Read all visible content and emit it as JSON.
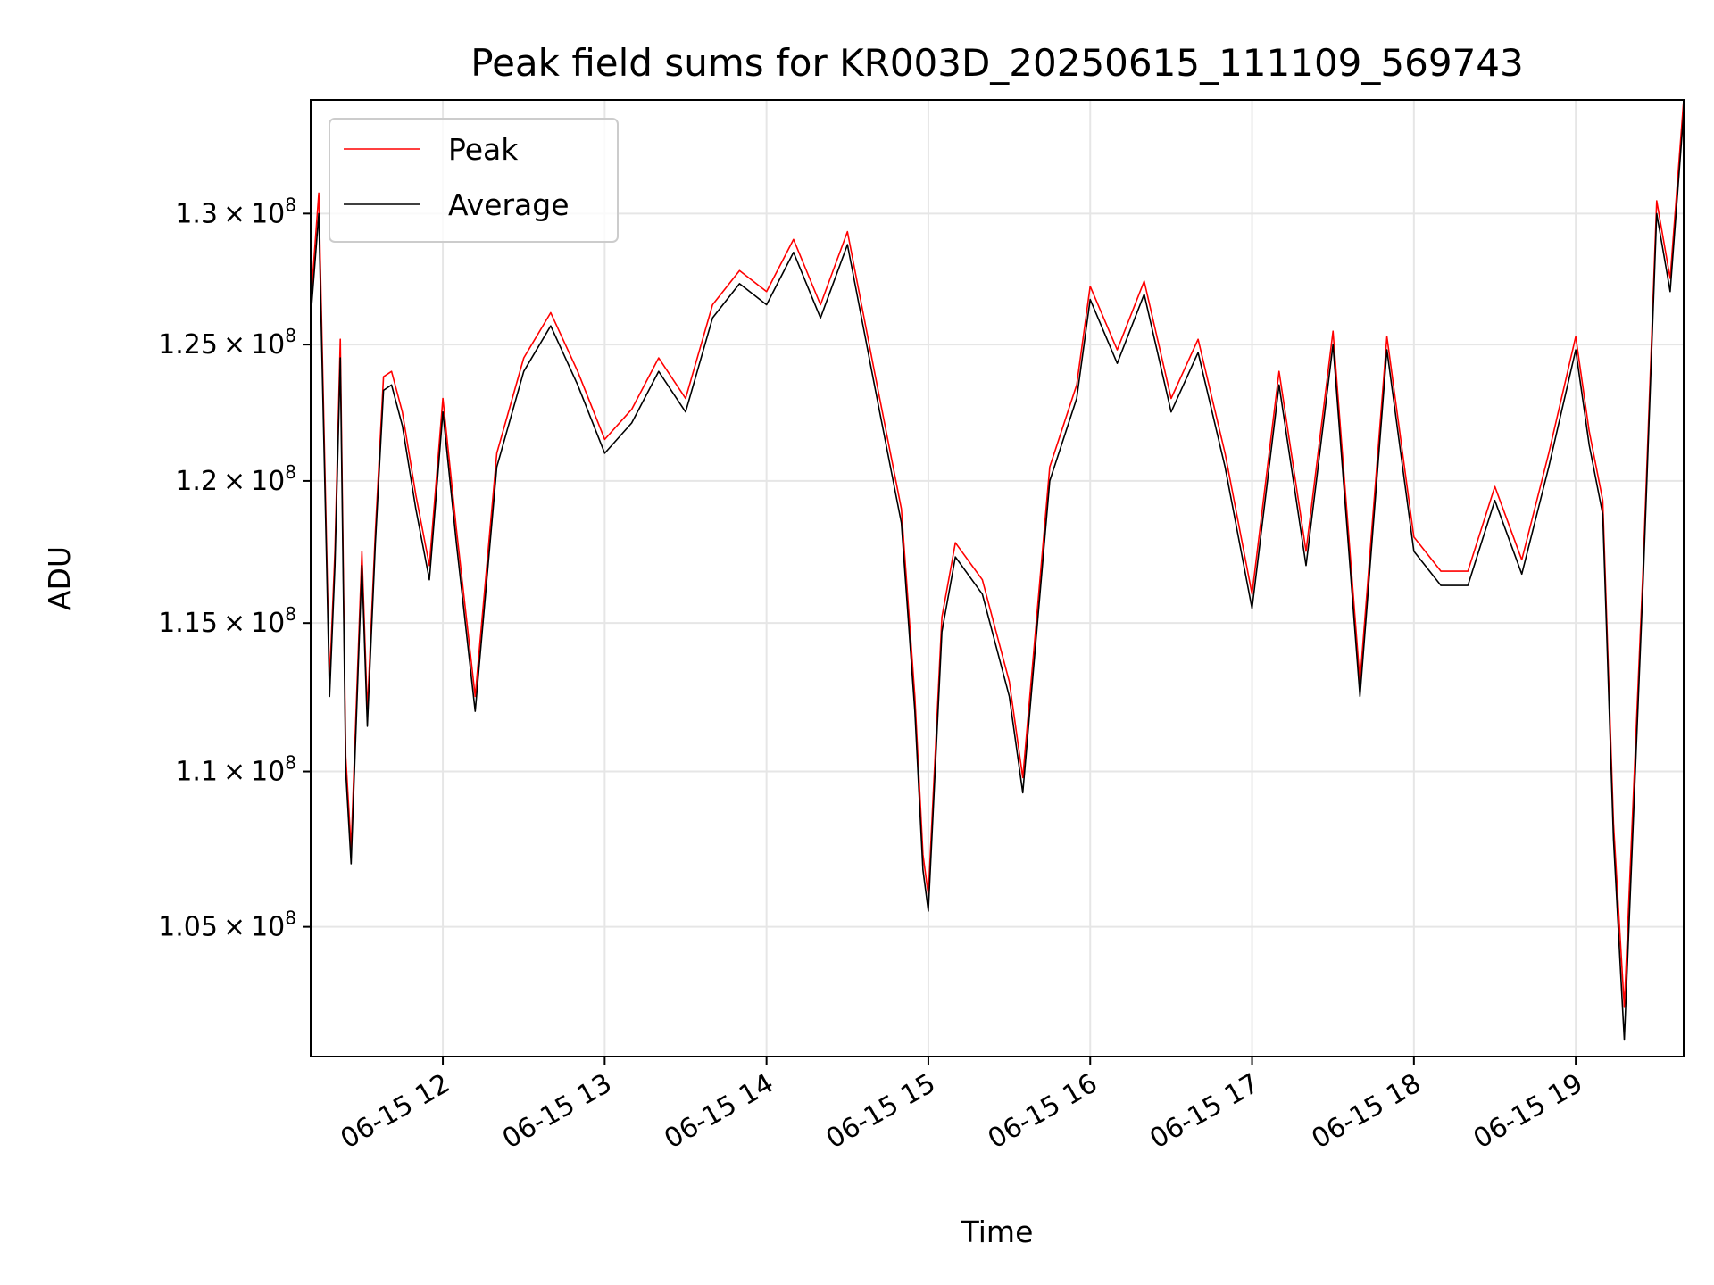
{
  "chart_data": {
    "type": "line",
    "title": "Peak field sums for KR003D_20250615_111109_569743",
    "xlabel": "Time",
    "ylabel": "ADU",
    "x_ticks": [
      "06-15 12",
      "06-15 13",
      "06-15 14",
      "06-15 15",
      "06-15 16",
      "06-15 17",
      "06-15 18",
      "06-15 19"
    ],
    "y_ticks": [
      {
        "value": 105000000,
        "mant": "1.05"
      },
      {
        "value": 110000000,
        "mant": "1.1"
      },
      {
        "value": 115000000,
        "mant": "1.15"
      },
      {
        "value": 120000000,
        "mant": "1.2"
      },
      {
        "value": 125000000,
        "mant": "1.25"
      },
      {
        "value": 130000000,
        "mant": "1.3"
      }
    ],
    "y_exponent": "8",
    "y_scale": "log",
    "xlim": [
      "06-15 11:11",
      "06-15 19:40"
    ],
    "ylim": [
      101000000,
      134500000
    ],
    "grid": true,
    "legend_position": "top-left",
    "series": [
      {
        "name": "Peak",
        "color": "#ff0000",
        "x": [
          "06-15 11:11",
          "06-15 11:14",
          "06-15 11:18",
          "06-15 11:20",
          "06-15 11:22",
          "06-15 11:24",
          "06-15 11:26",
          "06-15 11:30",
          "06-15 11:32",
          "06-15 11:35",
          "06-15 11:38",
          "06-15 11:41",
          "06-15 11:45",
          "06-15 11:50",
          "06-15 11:55",
          "06-15 12:00",
          "06-15 12:05",
          "06-15 12:12",
          "06-15 12:20",
          "06-15 12:30",
          "06-15 12:40",
          "06-15 12:50",
          "06-15 13:00",
          "06-15 13:10",
          "06-15 13:20",
          "06-15 13:30",
          "06-15 13:40",
          "06-15 13:50",
          "06-15 14:00",
          "06-15 14:10",
          "06-15 14:20",
          "06-15 14:30",
          "06-15 14:40",
          "06-15 14:50",
          "06-15 14:55",
          "06-15 14:58",
          "06-15 15:00",
          "06-15 15:05",
          "06-15 15:10",
          "06-15 15:20",
          "06-15 15:30",
          "06-15 15:35",
          "06-15 15:45",
          "06-15 15:55",
          "06-15 16:00",
          "06-15 16:10",
          "06-15 16:20",
          "06-15 16:30",
          "06-15 16:40",
          "06-15 16:50",
          "06-15 17:00",
          "06-15 17:10",
          "06-15 17:20",
          "06-15 17:30",
          "06-15 17:40",
          "06-15 17:50",
          "06-15 18:00",
          "06-15 18:10",
          "06-15 18:20",
          "06-15 18:30",
          "06-15 18:40",
          "06-15 18:50",
          "06-15 19:00",
          "06-15 19:05",
          "06-15 19:10",
          "06-15 19:14",
          "06-15 19:18",
          "06-15 19:25",
          "06-15 19:30",
          "06-15 19:35",
          "06-15 19:40"
        ],
        "values": [
          126500000,
          130800000,
          113000000,
          117500000,
          125200000,
          110500000,
          107500000,
          117500000,
          112000000,
          118200000,
          123800000,
          124000000,
          122500000,
          119500000,
          117000000,
          123000000,
          118300000,
          112500000,
          121000000,
          124500000,
          126200000,
          124000000,
          121500000,
          122600000,
          124500000,
          123000000,
          126500000,
          127800000,
          127000000,
          129000000,
          126500000,
          129300000,
          124000000,
          119000000,
          112500000,
          107300000,
          106000000,
          115200000,
          117800000,
          116500000,
          113000000,
          109800000,
          120500000,
          123500000,
          127200000,
          124800000,
          127400000,
          123000000,
          125200000,
          121000000,
          116000000,
          124000000,
          117500000,
          125500000,
          113000000,
          125300000,
          118000000,
          116800000,
          116800000,
          119800000,
          117200000,
          121000000,
          125300000,
          121800000,
          119300000,
          108300000,
          102500000,
          117000000,
          130500000,
          127500000,
          134500000
        ]
      },
      {
        "name": "Average",
        "color": "#000000",
        "x": [
          "06-15 11:11",
          "06-15 11:14",
          "06-15 11:18",
          "06-15 11:20",
          "06-15 11:22",
          "06-15 11:24",
          "06-15 11:26",
          "06-15 11:30",
          "06-15 11:32",
          "06-15 11:35",
          "06-15 11:38",
          "06-15 11:41",
          "06-15 11:45",
          "06-15 11:50",
          "06-15 11:55",
          "06-15 12:00",
          "06-15 12:05",
          "06-15 12:12",
          "06-15 12:20",
          "06-15 12:30",
          "06-15 12:40",
          "06-15 12:50",
          "06-15 13:00",
          "06-15 13:10",
          "06-15 13:20",
          "06-15 13:30",
          "06-15 13:40",
          "06-15 13:50",
          "06-15 14:00",
          "06-15 14:10",
          "06-15 14:20",
          "06-15 14:30",
          "06-15 14:40",
          "06-15 14:50",
          "06-15 14:55",
          "06-15 14:58",
          "06-15 15:00",
          "06-15 15:05",
          "06-15 15:10",
          "06-15 15:20",
          "06-15 15:30",
          "06-15 15:35",
          "06-15 15:45",
          "06-15 15:55",
          "06-15 16:00",
          "06-15 16:10",
          "06-15 16:20",
          "06-15 16:30",
          "06-15 16:40",
          "06-15 16:50",
          "06-15 17:00",
          "06-15 17:10",
          "06-15 17:20",
          "06-15 17:30",
          "06-15 17:40",
          "06-15 17:50",
          "06-15 18:00",
          "06-15 18:10",
          "06-15 18:20",
          "06-15 18:30",
          "06-15 18:40",
          "06-15 18:50",
          "06-15 19:00",
          "06-15 19:05",
          "06-15 19:10",
          "06-15 19:14",
          "06-15 19:18",
          "06-15 19:25",
          "06-15 19:30",
          "06-15 19:35",
          "06-15 19:40"
        ],
        "values": [
          126000000,
          130000000,
          112500000,
          117000000,
          124500000,
          110000000,
          107000000,
          117000000,
          111500000,
          117800000,
          123300000,
          123500000,
          122000000,
          119000000,
          116500000,
          122500000,
          117800000,
          112000000,
          120500000,
          124000000,
          125700000,
          123500000,
          121000000,
          122100000,
          124000000,
          122500000,
          126000000,
          127300000,
          126500000,
          128500000,
          126000000,
          128800000,
          123500000,
          118500000,
          112000000,
          106800000,
          105500000,
          114700000,
          117300000,
          116000000,
          112500000,
          109300000,
          120000000,
          123000000,
          126700000,
          124300000,
          126900000,
          122500000,
          124700000,
          120500000,
          115500000,
          123500000,
          117000000,
          125000000,
          112500000,
          124800000,
          117500000,
          116300000,
          116300000,
          119300000,
          116700000,
          120500000,
          124800000,
          121300000,
          118800000,
          107800000,
          101500000,
          116500000,
          130000000,
          127000000,
          134000000
        ]
      }
    ]
  }
}
